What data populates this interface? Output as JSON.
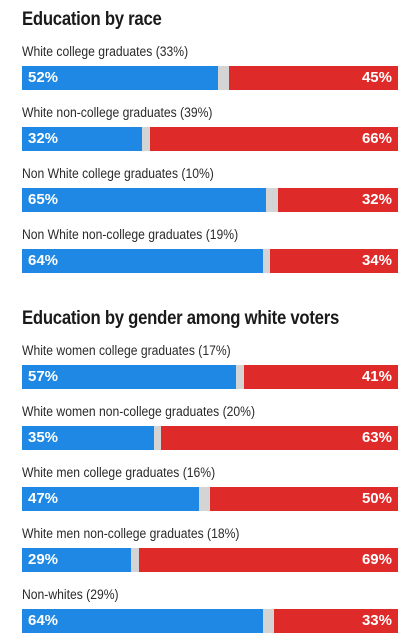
{
  "colors": {
    "dem": "#1f88e5",
    "rep": "#df2a2a",
    "other": "#d4d4d4"
  },
  "chart_data": [
    {
      "type": "bar",
      "title": "Education by race",
      "orientation": "horizontal-stacked",
      "categories": [
        "White college graduates (33%)",
        "White non-college graduates (39%)",
        "Non White college graduates (10%)",
        "Non White non-college graduates (19%)"
      ],
      "series": [
        {
          "values": [
            52,
            32,
            65,
            64
          ],
          "color": "#1f88e5"
        },
        {
          "values": [
            45,
            66,
            32,
            34
          ],
          "color": "#df2a2a"
        }
      ],
      "labels_left": [
        "52%",
        "32%",
        "65%",
        "64%"
      ],
      "labels_right": [
        "45%",
        "66%",
        "32%",
        "34%"
      ],
      "xlim": [
        0,
        100
      ]
    },
    {
      "type": "bar",
      "title": "Education by gender among white voters",
      "orientation": "horizontal-stacked",
      "categories": [
        "White women college graduates (17%)",
        "White women non-college graduates (20%)",
        "White men college graduates (16%)",
        "White men non-college graduates (18%)",
        "Non-whites (29%)"
      ],
      "series": [
        {
          "values": [
            57,
            35,
            47,
            29,
            64
          ],
          "color": "#1f88e5"
        },
        {
          "values": [
            41,
            63,
            50,
            69,
            33
          ],
          "color": "#df2a2a"
        }
      ],
      "labels_left": [
        "57%",
        "35%",
        "47%",
        "29%",
        "64%"
      ],
      "labels_right": [
        "41%",
        "63%",
        "50%",
        "69%",
        "33%"
      ],
      "xlim": [
        0,
        100
      ]
    }
  ]
}
